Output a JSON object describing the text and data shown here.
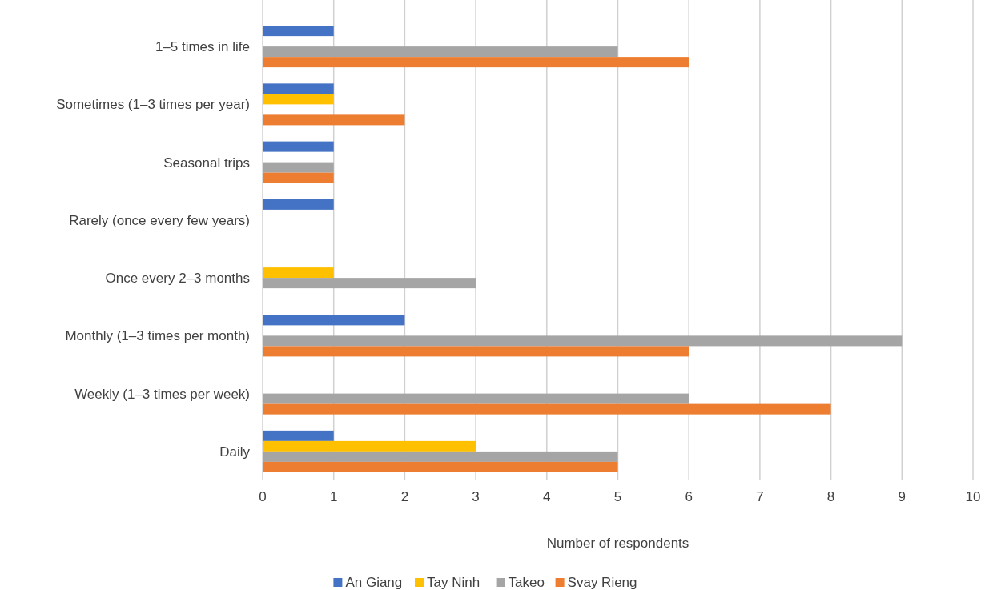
{
  "chart_data": {
    "type": "bar",
    "orientation": "horizontal",
    "xlabel": "Number of respondents",
    "categories": [
      "1–5 times in life",
      "Sometimes (1–3 times per year)",
      "Seasonal trips",
      "Rarely (once every few years)",
      "Once every 2–3 months",
      "Monthly (1–3 times per month)",
      "Weekly (1–3 times per week)",
      "Daily"
    ],
    "series": [
      {
        "name": "An Giang",
        "color": "#4472c4",
        "values": [
          1,
          1,
          1,
          1,
          0,
          2,
          0,
          1
        ]
      },
      {
        "name": "Tay Ninh",
        "color": "#ffc000",
        "values": [
          0,
          1,
          0,
          0,
          1,
          0,
          0,
          3
        ]
      },
      {
        "name": "Takeo",
        "color": "#a5a5a5",
        "values": [
          5,
          0,
          1,
          0,
          3,
          9,
          6,
          5
        ]
      },
      {
        "name": "Svay Rieng",
        "color": "#ed7d31",
        "values": [
          6,
          2,
          1,
          0,
          0,
          6,
          8,
          5
        ]
      }
    ],
    "xlim": [
      0,
      10
    ],
    "xticks": [
      0,
      1,
      2,
      3,
      4,
      5,
      6,
      7,
      8,
      9,
      10
    ],
    "grid": "x",
    "legend": "bottom"
  }
}
